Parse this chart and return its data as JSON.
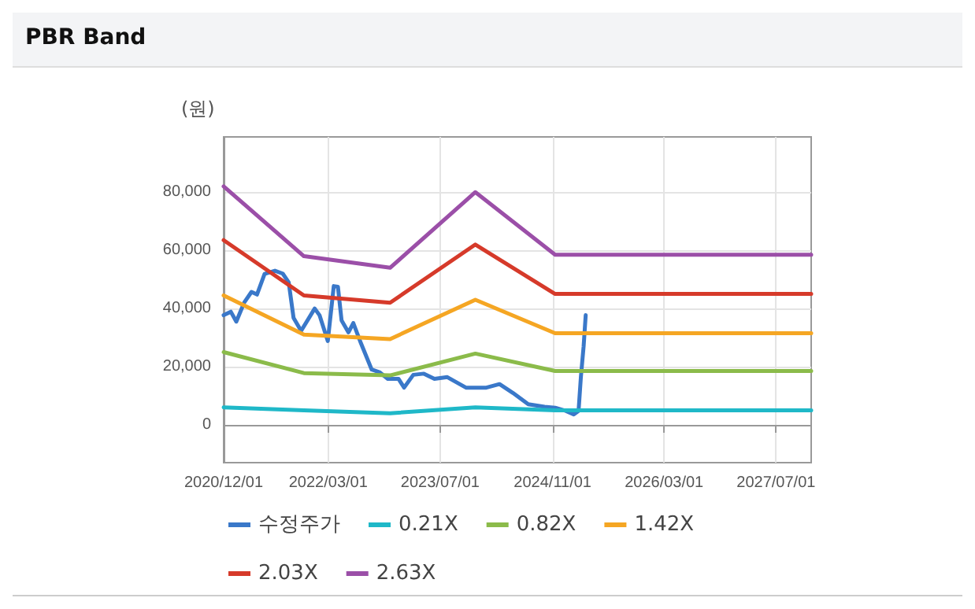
{
  "chart_data": {
    "type": "line",
    "title": "PBR Band",
    "ylabel": "(원)",
    "xlim": [
      "2020-12-01",
      "2027-12-01"
    ],
    "xticks": [
      {
        "value": "2020-12-01",
        "label": "2020/12/01"
      },
      {
        "value": "2022-03-01",
        "label": "2022/03/01"
      },
      {
        "value": "2023-07-01",
        "label": "2023/07/01"
      },
      {
        "value": "2024-11-01",
        "label": "2024/11/01"
      },
      {
        "value": "2026-03-01",
        "label": "2026/03/01"
      },
      {
        "value": "2027-07-01",
        "label": "2027/07/01"
      }
    ],
    "ylim": [
      -13000,
      99000
    ],
    "yticks": [
      {
        "value": 0,
        "label": "0"
      },
      {
        "value": 20000,
        "label": "20,000"
      },
      {
        "value": 40000,
        "label": "40,000"
      },
      {
        "value": 60000,
        "label": "60,000"
      },
      {
        "value": 80000,
        "label": "80,000"
      }
    ],
    "grid": true,
    "legend": "bottom",
    "marker": "none",
    "line_style": "solid",
    "series": [
      {
        "name": "수정주가",
        "color": "#3a78c9",
        "x": [
          "2020-12-01",
          "2021-01-01",
          "2021-01-25",
          "2021-02-28",
          "2021-04-01",
          "2021-04-25",
          "2021-05-28",
          "2021-07-12",
          "2021-08-15",
          "2021-09-10",
          "2021-10-01",
          "2021-11-03",
          "2022-01-01",
          "2022-01-22",
          "2022-02-27",
          "2022-03-25",
          "2022-04-12",
          "2022-04-28",
          "2022-05-28",
          "2022-06-18",
          "2022-07-22",
          "2022-09-06",
          "2022-10-10",
          "2022-11-15",
          "2023-01-01",
          "2023-01-25",
          "2023-03-06",
          "2023-04-21",
          "2023-06-06",
          "2023-08-01",
          "2023-10-21",
          "2024-01-18",
          "2024-03-15",
          "2024-05-12",
          "2024-07-18",
          "2024-09-27",
          "2024-11-12",
          "2024-12-28",
          "2025-02-01",
          "2025-02-22",
          "2025-03-04",
          "2025-03-16",
          "2025-03-25"
        ],
        "values": [
          37700,
          38900,
          35500,
          42000,
          45700,
          44800,
          51900,
          53000,
          52000,
          49000,
          36800,
          32300,
          40000,
          37700,
          28800,
          47700,
          47500,
          35900,
          31800,
          35000,
          27900,
          19000,
          18100,
          15800,
          15800,
          12800,
          17200,
          17600,
          15800,
          16400,
          12800,
          12800,
          14000,
          11000,
          7100,
          6200,
          5900,
          4800,
          3600,
          4800,
          16400,
          27000,
          37700
        ]
      },
      {
        "name": "0.21X",
        "color": "#1fb8c8",
        "x": [
          "2020-12-01",
          "2021-11-15",
          "2022-11-25",
          "2023-12-01",
          "2024-11-12",
          "2027-12-01"
        ],
        "values": [
          6000,
          5000,
          4000,
          6000,
          5000,
          5000
        ]
      },
      {
        "name": "0.82X",
        "color": "#8bbb4a",
        "x": [
          "2020-12-01",
          "2021-11-15",
          "2022-11-25",
          "2023-12-01",
          "2024-11-12",
          "2027-12-01"
        ],
        "values": [
          25000,
          17800,
          17000,
          24500,
          18500,
          18500
        ]
      },
      {
        "name": "1.42X",
        "color": "#f5a623",
        "x": [
          "2020-12-01",
          "2021-11-15",
          "2022-11-25",
          "2023-12-01",
          "2024-11-12",
          "2027-12-01"
        ],
        "values": [
          44500,
          31000,
          29500,
          43000,
          31500,
          31500
        ]
      },
      {
        "name": "2.03X",
        "color": "#d63a2a",
        "x": [
          "2020-12-01",
          "2021-11-15",
          "2022-11-25",
          "2023-12-01",
          "2024-11-12",
          "2027-12-01"
        ],
        "values": [
          63500,
          44500,
          42000,
          62000,
          45000,
          45000
        ]
      },
      {
        "name": "2.63X",
        "color": "#9b4fa8",
        "x": [
          "2020-12-01",
          "2021-11-15",
          "2022-11-25",
          "2023-12-01",
          "2024-11-12",
          "2027-12-01"
        ],
        "values": [
          82000,
          58000,
          54000,
          80000,
          58500,
          58500
        ]
      }
    ]
  }
}
